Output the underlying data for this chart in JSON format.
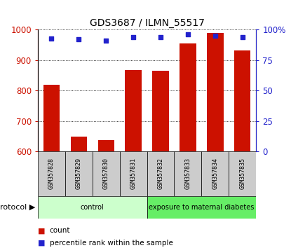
{
  "title": "GDS3687 / ILMN_55517",
  "samples": [
    "GSM357828",
    "GSM357829",
    "GSM357830",
    "GSM357831",
    "GSM357832",
    "GSM357833",
    "GSM357834",
    "GSM357835"
  ],
  "counts": [
    820,
    648,
    636,
    868,
    865,
    955,
    990,
    932
  ],
  "percentile_ranks": [
    93,
    92,
    91,
    94,
    94,
    96,
    95,
    94
  ],
  "ylim_left": [
    600,
    1000
  ],
  "ylim_right": [
    0,
    100
  ],
  "yticks_left": [
    600,
    700,
    800,
    900,
    1000
  ],
  "yticks_right": [
    0,
    25,
    50,
    75,
    100
  ],
  "yticklabels_right": [
    "0",
    "25",
    "50",
    "75",
    "100%"
  ],
  "bar_color": "#cc1100",
  "scatter_color": "#2222cc",
  "bar_width": 0.6,
  "grid_color": "black",
  "protocol_groups": [
    {
      "label": "control",
      "start": 0,
      "end": 4,
      "color": "#ccffcc"
    },
    {
      "label": "exposure to maternal diabetes",
      "start": 4,
      "end": 8,
      "color": "#66ee66"
    }
  ],
  "sample_box_color": "#cccccc",
  "protocol_label": "protocol",
  "legend_items": [
    {
      "label": "count",
      "color": "#cc1100"
    },
    {
      "label": "percentile rank within the sample",
      "color": "#2222cc"
    }
  ],
  "background_color": "#ffffff",
  "plot_bg_color": "#ffffff"
}
